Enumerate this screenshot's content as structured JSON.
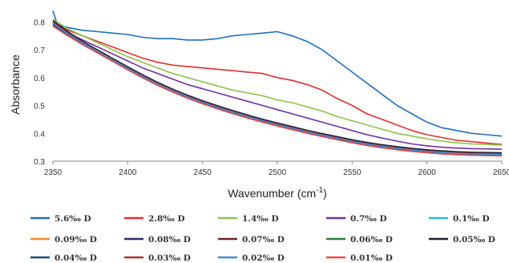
{
  "chart_data": {
    "type": "line",
    "title": "",
    "xlabel": "Wavenumber (cm",
    "xlabel_sup": "-1",
    "xlabel_end": ")",
    "ylabel": "Absorbance",
    "xlim": [
      2350,
      2650
    ],
    "ylim": [
      0.3,
      0.85
    ],
    "xticks": [
      "2350",
      "2400",
      "2450",
      "2500",
      "2550",
      "2600",
      "2650"
    ],
    "yticks": [
      "0.3",
      "0.4",
      "0.5",
      "0.6",
      "0.7",
      "0.8"
    ],
    "grid": false,
    "legend_position": "bottom",
    "series": [
      {
        "name": "5.6‰ D",
        "color": "#1f6fbf",
        "x": [
          2350,
          2353,
          2360,
          2370,
          2380,
          2390,
          2400,
          2410,
          2420,
          2430,
          2440,
          2450,
          2460,
          2470,
          2480,
          2490,
          2500,
          2510,
          2520,
          2530,
          2540,
          2550,
          2560,
          2570,
          2580,
          2590,
          2600,
          2610,
          2620,
          2630,
          2640,
          2650
        ],
        "y": [
          0.84,
          0.79,
          0.78,
          0.77,
          0.765,
          0.76,
          0.755,
          0.745,
          0.74,
          0.74,
          0.735,
          0.735,
          0.74,
          0.75,
          0.755,
          0.76,
          0.765,
          0.75,
          0.73,
          0.7,
          0.66,
          0.62,
          0.58,
          0.54,
          0.5,
          0.47,
          0.44,
          0.42,
          0.41,
          0.4,
          0.395,
          0.39
        ]
      },
      {
        "name": "2.8‰ D",
        "color": "#e03030",
        "x": [
          2350,
          2360,
          2370,
          2380,
          2390,
          2400,
          2410,
          2420,
          2430,
          2440,
          2450,
          2460,
          2470,
          2480,
          2490,
          2500,
          2510,
          2520,
          2530,
          2540,
          2550,
          2560,
          2570,
          2580,
          2590,
          2600,
          2610,
          2620,
          2630,
          2640,
          2650
        ],
        "y": [
          0.8,
          0.77,
          0.75,
          0.73,
          0.71,
          0.69,
          0.67,
          0.655,
          0.645,
          0.64,
          0.635,
          0.63,
          0.625,
          0.62,
          0.615,
          0.6,
          0.59,
          0.575,
          0.555,
          0.525,
          0.5,
          0.47,
          0.45,
          0.43,
          0.41,
          0.395,
          0.385,
          0.375,
          0.37,
          0.365,
          0.36
        ]
      },
      {
        "name": "1.4‰ D",
        "color": "#8cc34a",
        "x": [
          2350,
          2360,
          2370,
          2380,
          2390,
          2400,
          2410,
          2420,
          2430,
          2440,
          2450,
          2460,
          2470,
          2480,
          2490,
          2500,
          2510,
          2520,
          2530,
          2540,
          2550,
          2560,
          2570,
          2580,
          2590,
          2600,
          2610,
          2620,
          2630,
          2640,
          2650
        ],
        "y": [
          0.81,
          0.775,
          0.75,
          0.725,
          0.7,
          0.675,
          0.655,
          0.635,
          0.615,
          0.6,
          0.585,
          0.57,
          0.555,
          0.545,
          0.535,
          0.52,
          0.51,
          0.495,
          0.48,
          0.46,
          0.445,
          0.43,
          0.415,
          0.4,
          0.39,
          0.38,
          0.372,
          0.366,
          0.362,
          0.36,
          0.358
        ]
      },
      {
        "name": "0.7‰ D",
        "color": "#7030a0",
        "x": [
          2350,
          2360,
          2370,
          2380,
          2390,
          2400,
          2410,
          2420,
          2430,
          2440,
          2450,
          2460,
          2470,
          2480,
          2490,
          2500,
          2510,
          2520,
          2530,
          2540,
          2550,
          2560,
          2570,
          2580,
          2590,
          2600,
          2610,
          2620,
          2630,
          2640,
          2650
        ],
        "y": [
          0.79,
          0.76,
          0.735,
          0.71,
          0.685,
          0.66,
          0.635,
          0.615,
          0.595,
          0.575,
          0.56,
          0.545,
          0.53,
          0.515,
          0.5,
          0.485,
          0.47,
          0.455,
          0.44,
          0.425,
          0.41,
          0.395,
          0.383,
          0.372,
          0.362,
          0.355,
          0.35,
          0.347,
          0.345,
          0.344,
          0.343
        ]
      },
      {
        "name": "0.1‰ D",
        "color": "#2fb5e0",
        "x": [
          2350,
          2360,
          2370,
          2380,
          2390,
          2400,
          2410,
          2420,
          2430,
          2440,
          2450,
          2460,
          2470,
          2480,
          2490,
          2500,
          2510,
          2520,
          2530,
          2540,
          2550,
          2560,
          2570,
          2580,
          2590,
          2600,
          2610,
          2620,
          2630,
          2640,
          2650
        ],
        "y": [
          0.8,
          0.76,
          0.725,
          0.695,
          0.665,
          0.635,
          0.605,
          0.578,
          0.555,
          0.533,
          0.513,
          0.495,
          0.478,
          0.462,
          0.447,
          0.433,
          0.42,
          0.407,
          0.395,
          0.384,
          0.373,
          0.363,
          0.355,
          0.348,
          0.342,
          0.337,
          0.333,
          0.33,
          0.328,
          0.327,
          0.326
        ]
      },
      {
        "name": "0.09‰ D",
        "color": "#f08a30",
        "x": [
          2350,
          2360,
          2370,
          2380,
          2390,
          2400,
          2410,
          2420,
          2430,
          2440,
          2450,
          2460,
          2470,
          2480,
          2490,
          2500,
          2510,
          2520,
          2530,
          2540,
          2550,
          2560,
          2570,
          2580,
          2590,
          2600,
          2610,
          2620,
          2630,
          2640,
          2650
        ],
        "y": [
          0.79,
          0.755,
          0.722,
          0.692,
          0.662,
          0.632,
          0.603,
          0.576,
          0.553,
          0.531,
          0.511,
          0.493,
          0.476,
          0.46,
          0.445,
          0.431,
          0.418,
          0.405,
          0.393,
          0.382,
          0.371,
          0.361,
          0.353,
          0.346,
          0.34,
          0.335,
          0.331,
          0.328,
          0.326,
          0.325,
          0.324
        ]
      },
      {
        "name": "0.08‰ D",
        "color": "#2b2c6e",
        "x": [
          2350,
          2360,
          2370,
          2380,
          2390,
          2400,
          2410,
          2420,
          2430,
          2440,
          2450,
          2460,
          2470,
          2480,
          2490,
          2500,
          2510,
          2520,
          2530,
          2540,
          2550,
          2560,
          2570,
          2580,
          2590,
          2600,
          2610,
          2620,
          2630,
          2640,
          2650
        ],
        "y": [
          0.8,
          0.762,
          0.728,
          0.697,
          0.667,
          0.637,
          0.608,
          0.581,
          0.557,
          0.535,
          0.515,
          0.497,
          0.48,
          0.464,
          0.449,
          0.435,
          0.422,
          0.409,
          0.397,
          0.386,
          0.375,
          0.365,
          0.357,
          0.35,
          0.344,
          0.339,
          0.335,
          0.332,
          0.33,
          0.329,
          0.328
        ]
      },
      {
        "name": "0.07‰ D",
        "color": "#7a1f1f",
        "x": [
          2350,
          2360,
          2370,
          2380,
          2390,
          2400,
          2410,
          2420,
          2430,
          2440,
          2450,
          2460,
          2470,
          2480,
          2490,
          2500,
          2510,
          2520,
          2530,
          2540,
          2550,
          2560,
          2570,
          2580,
          2590,
          2600,
          2610,
          2620,
          2630,
          2640,
          2650
        ],
        "y": [
          0.785,
          0.752,
          0.72,
          0.69,
          0.66,
          0.63,
          0.601,
          0.574,
          0.551,
          0.529,
          0.509,
          0.491,
          0.474,
          0.458,
          0.443,
          0.429,
          0.416,
          0.403,
          0.391,
          0.38,
          0.369,
          0.359,
          0.351,
          0.344,
          0.338,
          0.333,
          0.329,
          0.326,
          0.324,
          0.323,
          0.322
        ]
      },
      {
        "name": "0.06‰ D",
        "color": "#2e7d32",
        "x": [
          2350,
          2360,
          2370,
          2380,
          2390,
          2400,
          2410,
          2420,
          2430,
          2440,
          2450,
          2460,
          2470,
          2480,
          2490,
          2500,
          2510,
          2520,
          2530,
          2540,
          2550,
          2560,
          2570,
          2580,
          2590,
          2600,
          2610,
          2620,
          2630,
          2640,
          2650
        ],
        "y": [
          0.795,
          0.758,
          0.725,
          0.694,
          0.664,
          0.634,
          0.605,
          0.578,
          0.554,
          0.532,
          0.512,
          0.494,
          0.477,
          0.461,
          0.446,
          0.432,
          0.419,
          0.406,
          0.394,
          0.383,
          0.372,
          0.362,
          0.354,
          0.347,
          0.341,
          0.336,
          0.332,
          0.329,
          0.327,
          0.326,
          0.325
        ]
      },
      {
        "name": "0.05‰ D",
        "color": "#1f1f3a",
        "x": [
          2350,
          2360,
          2370,
          2380,
          2390,
          2400,
          2410,
          2420,
          2430,
          2440,
          2450,
          2460,
          2470,
          2480,
          2490,
          2500,
          2510,
          2520,
          2530,
          2540,
          2550,
          2560,
          2570,
          2580,
          2590,
          2600,
          2610,
          2620,
          2630,
          2640,
          2650
        ],
        "y": [
          0.805,
          0.765,
          0.73,
          0.699,
          0.669,
          0.639,
          0.61,
          0.583,
          0.559,
          0.537,
          0.517,
          0.499,
          0.482,
          0.466,
          0.451,
          0.437,
          0.424,
          0.411,
          0.399,
          0.388,
          0.377,
          0.367,
          0.359,
          0.352,
          0.346,
          0.341,
          0.337,
          0.334,
          0.332,
          0.331,
          0.33
        ]
      },
      {
        "name": "0.04‰ D",
        "color": "#1b4f72",
        "x": [
          2350,
          2360,
          2370,
          2380,
          2390,
          2400,
          2410,
          2420,
          2430,
          2440,
          2450,
          2460,
          2470,
          2480,
          2490,
          2500,
          2510,
          2520,
          2530,
          2540,
          2550,
          2560,
          2570,
          2580,
          2590,
          2600,
          2610,
          2620,
          2630,
          2640,
          2650
        ],
        "y": [
          0.79,
          0.756,
          0.723,
          0.693,
          0.663,
          0.633,
          0.604,
          0.577,
          0.553,
          0.531,
          0.511,
          0.493,
          0.476,
          0.46,
          0.445,
          0.431,
          0.418,
          0.405,
          0.393,
          0.382,
          0.371,
          0.361,
          0.353,
          0.346,
          0.34,
          0.335,
          0.331,
          0.328,
          0.326,
          0.325,
          0.324
        ]
      },
      {
        "name": "0.03‰ D",
        "color": "#a83232",
        "x": [
          2350,
          2360,
          2370,
          2380,
          2390,
          2400,
          2410,
          2420,
          2430,
          2440,
          2450,
          2460,
          2470,
          2480,
          2490,
          2500,
          2510,
          2520,
          2530,
          2540,
          2550,
          2560,
          2570,
          2580,
          2590,
          2600,
          2610,
          2620,
          2630,
          2640,
          2650
        ],
        "y": [
          0.8,
          0.76,
          0.726,
          0.695,
          0.665,
          0.635,
          0.606,
          0.579,
          0.555,
          0.533,
          0.513,
          0.495,
          0.478,
          0.462,
          0.447,
          0.433,
          0.42,
          0.407,
          0.395,
          0.384,
          0.373,
          0.363,
          0.355,
          0.348,
          0.342,
          0.337,
          0.333,
          0.33,
          0.328,
          0.327,
          0.326
        ]
      },
      {
        "name": "0.02‰ D",
        "color": "#3a8fd0",
        "x": [
          2350,
          2360,
          2370,
          2380,
          2390,
          2400,
          2410,
          2420,
          2430,
          2440,
          2450,
          2460,
          2470,
          2480,
          2490,
          2500,
          2510,
          2520,
          2530,
          2540,
          2550,
          2560,
          2570,
          2580,
          2590,
          2600,
          2610,
          2620,
          2630,
          2640,
          2650
        ],
        "y": [
          0.795,
          0.757,
          0.724,
          0.693,
          0.663,
          0.633,
          0.604,
          0.577,
          0.553,
          0.531,
          0.511,
          0.493,
          0.476,
          0.46,
          0.445,
          0.431,
          0.418,
          0.405,
          0.393,
          0.382,
          0.371,
          0.361,
          0.353,
          0.346,
          0.34,
          0.335,
          0.331,
          0.328,
          0.326,
          0.325,
          0.324
        ]
      },
      {
        "name": "0.01‰ D",
        "color": "#e84a4a",
        "x": [
          2350,
          2360,
          2370,
          2380,
          2390,
          2400,
          2410,
          2420,
          2430,
          2440,
          2450,
          2460,
          2470,
          2480,
          2490,
          2500,
          2510,
          2520,
          2530,
          2540,
          2550,
          2560,
          2570,
          2580,
          2590,
          2600,
          2610,
          2620,
          2630,
          2640,
          2650
        ],
        "y": [
          0.785,
          0.75,
          0.718,
          0.688,
          0.658,
          0.628,
          0.599,
          0.572,
          0.548,
          0.526,
          0.506,
          0.488,
          0.471,
          0.455,
          0.44,
          0.426,
          0.413,
          0.4,
          0.388,
          0.377,
          0.366,
          0.356,
          0.348,
          0.341,
          0.335,
          0.33,
          0.326,
          0.323,
          0.321,
          0.32,
          0.319
        ]
      }
    ]
  }
}
